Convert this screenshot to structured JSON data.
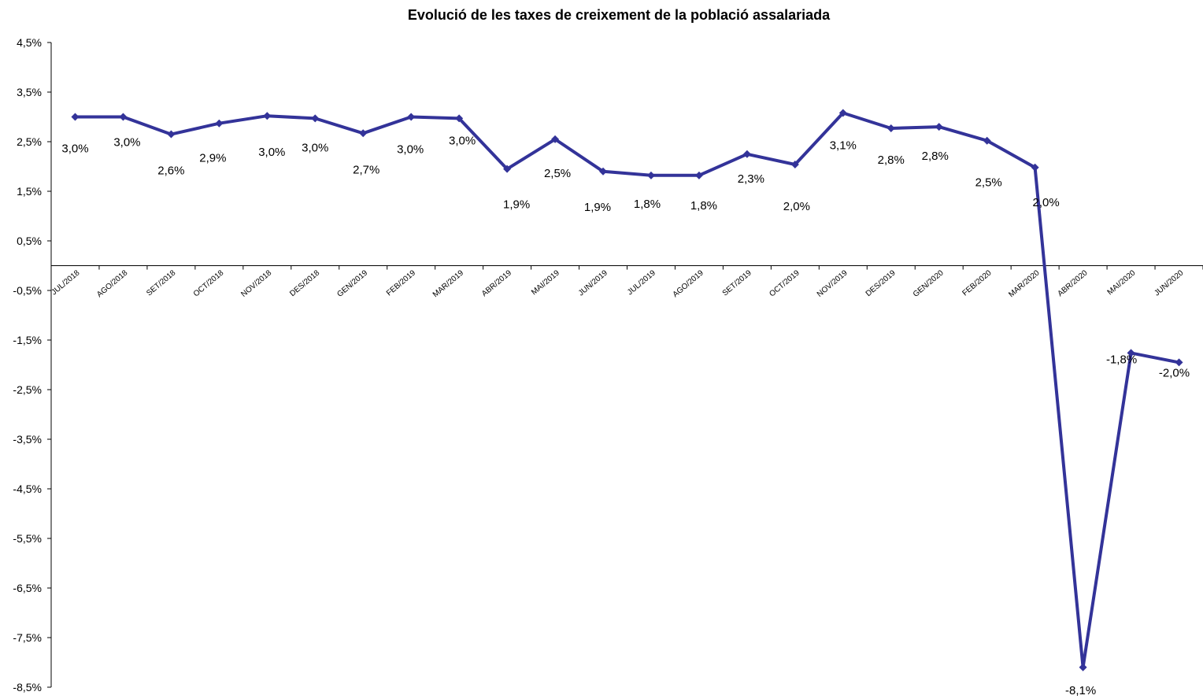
{
  "chart_data": {
    "type": "line",
    "title": "Evolució de les taxes de creixement de la població assalariada",
    "xlabel": "",
    "ylabel": "",
    "ylim": [
      -8.5,
      4.5
    ],
    "yticks": [
      "4,5%",
      "3,5%",
      "2,5%",
      "1,5%",
      "0,5%",
      "-0,5%",
      "-1,5%",
      "-2,5%",
      "-3,5%",
      "-4,5%",
      "-5,5%",
      "-6,5%",
      "-7,5%",
      "-8,5%"
    ],
    "ytick_values": [
      4.5,
      3.5,
      2.5,
      1.5,
      0.5,
      -0.5,
      -1.5,
      -2.5,
      -3.5,
      -4.5,
      -5.5,
      -6.5,
      -7.5,
      -8.5
    ],
    "categories": [
      "JUL/2018",
      "AGO/2018",
      "SET/2018",
      "OCT/2018",
      "NOV/2018",
      "DES/2018",
      "GEN/2019",
      "FEB/2019",
      "MAR/2019",
      "ABR/2019",
      "MAI/2019",
      "JUN/2019",
      "JUL/2019",
      "AGO/2019",
      "SET/2019",
      "OCT/2019",
      "NOV/2019",
      "DES/2019",
      "GEN/2020",
      "FEB/2020",
      "MAR/2020",
      "ABR/2020",
      "MAI/2020",
      "JUN/2020"
    ],
    "values": [
      3.0,
      3.0,
      2.65,
      2.87,
      3.02,
      2.97,
      2.67,
      3.0,
      2.97,
      1.95,
      2.55,
      1.9,
      1.82,
      1.82,
      2.25,
      2.04,
      3.08,
      2.77,
      2.8,
      2.52,
      1.98,
      -8.1,
      -1.76,
      -1.95
    ],
    "data_labels": [
      "3,0%",
      "3,0%",
      "2,6%",
      "2,9%",
      "3,0%",
      "3,0%",
      "2,7%",
      "3,0%",
      "3,0%",
      "1,9%",
      "2,5%",
      "1,9%",
      "1,8%",
      "1,8%",
      "2,3%",
      "2,0%",
      "3,1%",
      "2,8%",
      "2,8%",
      "2,5%",
      "2,0%",
      "-8,1%",
      "-1,8%",
      "-2,0%"
    ],
    "series_color": "#333399",
    "grid": false,
    "legend": "none"
  }
}
